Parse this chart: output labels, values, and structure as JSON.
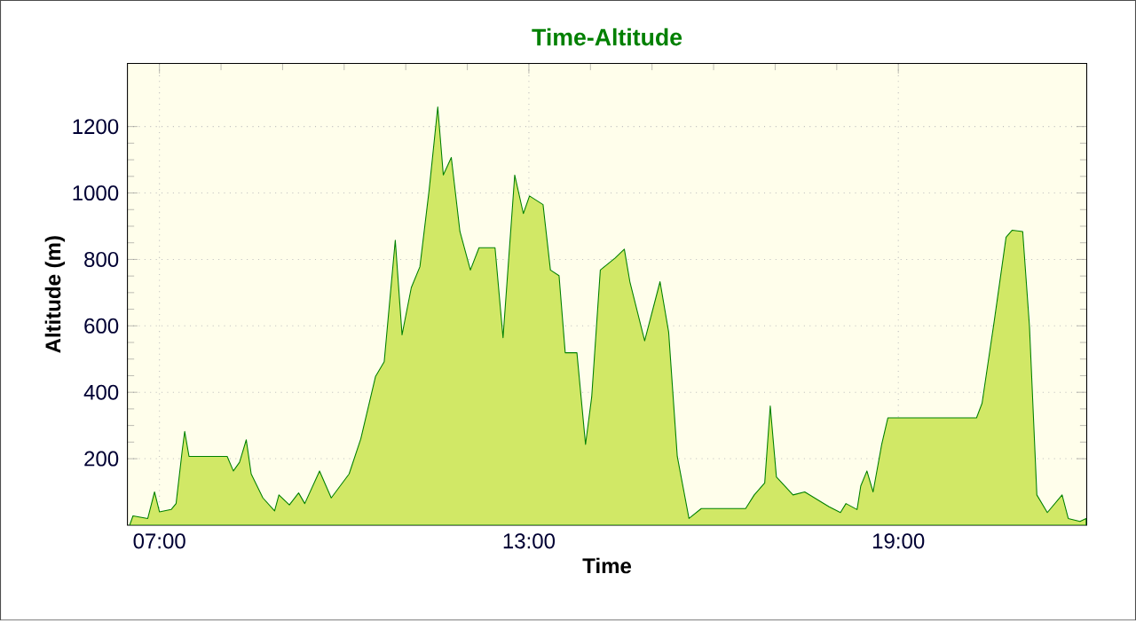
{
  "chart_data": {
    "type": "area",
    "title": "Time-Altitude",
    "xlabel": "Time",
    "ylabel": "Altitude (m)",
    "color": "#008000",
    "grid": true,
    "xlim": [
      6.48,
      22.06
    ],
    "ylim": [
      0,
      1390
    ],
    "xticks": [
      {
        "value": 7,
        "label": "07:00"
      },
      {
        "value": 13,
        "label": "13:00"
      },
      {
        "value": 19,
        "label": "19:00"
      }
    ],
    "yticks": [
      200,
      400,
      600,
      800,
      1000,
      1200
    ],
    "x": [
      6.52,
      6.57,
      6.81,
      6.92,
      7.0,
      7.19,
      7.27,
      7.37,
      7.41,
      7.48,
      8.1,
      8.2,
      8.3,
      8.41,
      8.49,
      8.68,
      8.87,
      8.94,
      9.11,
      9.26,
      9.36,
      9.6,
      9.79,
      10.08,
      10.27,
      10.51,
      10.65,
      10.83,
      10.94,
      11.09,
      11.23,
      11.38,
      11.52,
      11.61,
      11.74,
      11.88,
      12.05,
      12.19,
      12.45,
      12.58,
      12.77,
      12.91,
      13.01,
      13.23,
      13.35,
      13.49,
      13.59,
      13.78,
      13.92,
      14.02,
      14.16,
      14.4,
      14.55,
      14.64,
      14.88,
      15.13,
      15.27,
      15.41,
      15.6,
      15.8,
      16.52,
      16.66,
      16.83,
      16.92,
      17.02,
      17.29,
      17.48,
      17.87,
      18.06,
      18.15,
      18.33,
      18.39,
      18.49,
      18.59,
      18.73,
      18.83,
      20.27,
      20.36,
      20.56,
      20.75,
      20.85,
      21.02,
      21.13,
      21.25,
      21.42,
      21.66,
      21.76,
      21.95,
      22.05
    ],
    "values": [
      2,
      28,
      20,
      100,
      40,
      47,
      65,
      225,
      282,
      207,
      207,
      163,
      189,
      257,
      154,
      82,
      43,
      91,
      61,
      97,
      65,
      163,
      82,
      154,
      260,
      448,
      492,
      858,
      573,
      715,
      778,
      1009,
      1259,
      1054,
      1107,
      884,
      768,
      835,
      835,
      564,
      1054,
      938,
      991,
      965,
      768,
      751,
      519,
      519,
      243,
      386,
      768,
      804,
      831,
      733,
      555,
      733,
      581,
      207,
      20,
      50,
      50,
      91,
      127,
      359,
      145,
      91,
      100,
      56,
      38,
      65,
      47,
      118,
      163,
      100,
      243,
      323,
      323,
      367,
      617,
      867,
      888,
      884,
      599,
      91,
      38,
      91,
      20,
      11,
      20
    ]
  }
}
